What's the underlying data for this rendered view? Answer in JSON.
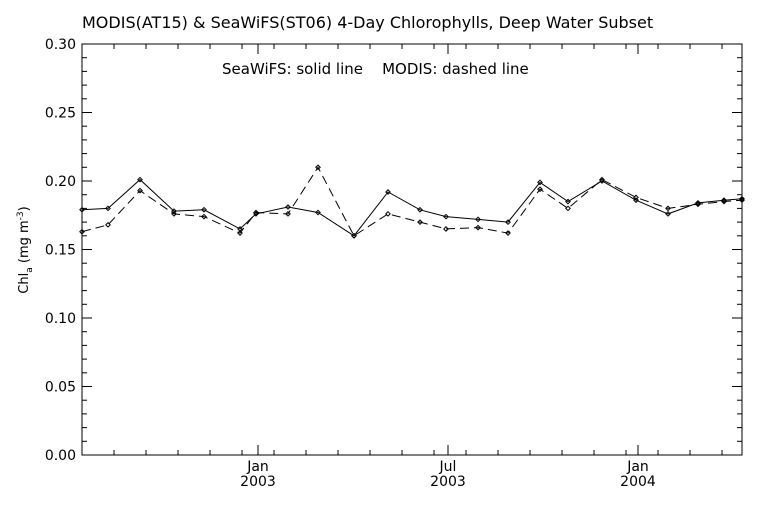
{
  "chart_data": {
    "type": "line",
    "title": "MODIS(AT15) & SeaWiFS(ST06) 4-Day Chlorophylls, Deep Water Subset",
    "annotation": "SeaWiFS: solid line    MODIS: dashed line",
    "ylabel": {
      "main": "Chl",
      "sub": "a",
      "unit": " (mg m",
      "sup": "-3",
      "close": ")"
    },
    "ylim": [
      0,
      0.3
    ],
    "xlim": [
      0,
      33
    ],
    "yticks": [
      "0.00",
      "0.05",
      "0.10",
      "0.15",
      "0.20",
      "0.25",
      "0.30"
    ],
    "xticks": [
      {
        "pos": 8.8,
        "line1": "Jan",
        "line2": "2003"
      },
      {
        "pos": 18.3,
        "line1": "Jul",
        "line2": "2003"
      },
      {
        "pos": 27.8,
        "line1": "Jan",
        "line2": "2004"
      }
    ],
    "minor_xticks": [
      1.6,
      3.2,
      4.8,
      6.4,
      8.0,
      9.6,
      11.2,
      12.8,
      14.4,
      16.0,
      17.6,
      19.2,
      20.8,
      22.4,
      24.0,
      25.6,
      27.2,
      28.8,
      30.4,
      32.0
    ],
    "x": [
      0,
      1.3,
      2.9,
      4.6,
      6.1,
      7.9,
      8.7,
      10.3,
      11.8,
      13.6,
      15.3,
      16.9,
      18.2,
      19.8,
      21.3,
      22.9,
      24.3,
      26.0,
      27.7,
      29.3,
      30.8,
      32.1,
      33
    ],
    "series": [
      {
        "name": "SeaWiFS",
        "dash": false,
        "values": [
          0.179,
          0.18,
          0.201,
          0.178,
          0.179,
          0.165,
          0.176,
          0.181,
          0.177,
          0.16,
          0.192,
          0.179,
          0.174,
          0.172,
          0.17,
          0.199,
          0.185,
          0.2,
          0.186,
          0.176,
          0.184,
          0.186,
          0.187
        ]
      },
      {
        "name": "MODIS",
        "dash": true,
        "values": [
          0.163,
          0.168,
          0.193,
          0.176,
          0.174,
          0.162,
          0.177,
          0.176,
          0.21,
          0.16,
          0.176,
          0.17,
          0.165,
          0.166,
          0.162,
          0.194,
          0.18,
          0.201,
          0.188,
          0.18,
          0.183,
          0.185,
          0.186
        ]
      }
    ]
  }
}
